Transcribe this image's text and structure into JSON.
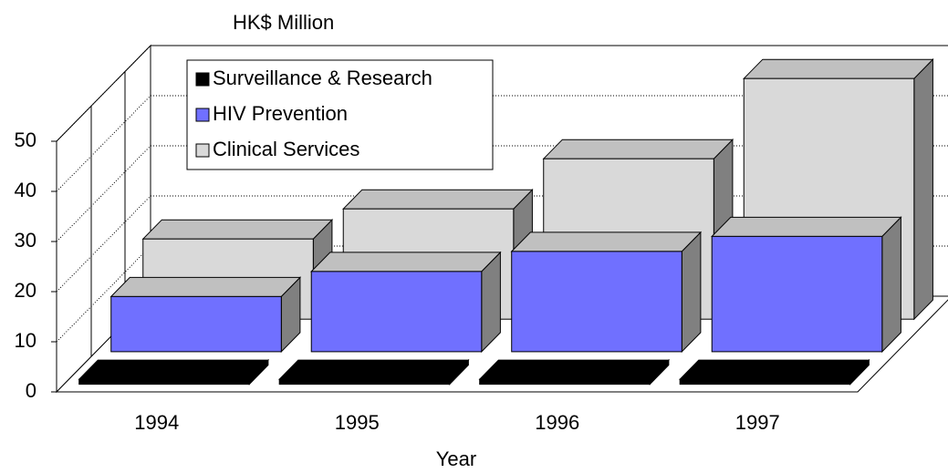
{
  "chart_data": {
    "type": "bar3d",
    "y_axis_label": "HK$ Million",
    "x_axis_label": "Year",
    "categories": [
      "1994",
      "1995",
      "1996",
      "1997"
    ],
    "series": [
      {
        "name": "Surveillance & Research",
        "color": "#000000",
        "values": [
          1,
          1,
          1,
          1
        ]
      },
      {
        "name": "HIV Prevention",
        "color": "#7070ff",
        "values": [
          11,
          16,
          20,
          23
        ]
      },
      {
        "name": "Clinical Services",
        "color": "#d9d9d9",
        "values": [
          16,
          22,
          32,
          48
        ]
      }
    ],
    "ylim": [
      0,
      50
    ],
    "yticks": [
      0,
      10,
      20,
      30,
      40,
      50
    ],
    "grid": true,
    "legend": "top-left"
  }
}
